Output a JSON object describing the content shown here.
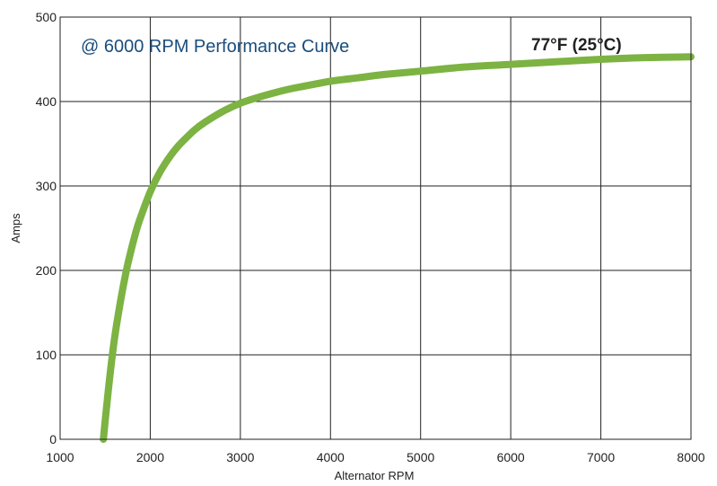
{
  "chart_data": {
    "type": "line",
    "title": "@ 6000 RPM Performance Curve",
    "annotation": "77°F (25°C)",
    "xlabel": "Alternator RPM",
    "ylabel": "Amps",
    "xlim": [
      1000,
      8000
    ],
    "ylim": [
      0,
      500
    ],
    "x_ticks": [
      1000,
      2000,
      3000,
      4000,
      5000,
      6000,
      7000,
      8000
    ],
    "y_ticks": [
      0,
      100,
      200,
      300,
      400,
      500
    ],
    "grid": true,
    "colors": {
      "line": "#7cb342",
      "title": "#1a4d7c",
      "annotation": "#222222",
      "grid": "#222222"
    },
    "series": [
      {
        "x": [
          1480,
          1500,
          1530,
          1560,
          1600,
          1650,
          1700,
          1750,
          1800,
          1850,
          1900,
          2000,
          2100,
          2200,
          2300,
          2400,
          2500,
          2600,
          2800,
          3000,
          3200,
          3400,
          3600,
          3800,
          4000,
          4300,
          4600,
          5000,
          5500,
          6000,
          6500,
          7000,
          7500,
          8000
        ],
        "y": [
          0,
          22,
          53,
          82,
          117,
          151,
          181,
          207,
          229,
          249,
          265,
          293,
          315,
          332,
          346,
          357,
          367,
          375,
          388,
          398,
          405,
          411,
          416,
          420,
          424,
          428,
          432,
          436,
          441,
          444,
          447,
          450,
          452,
          453
        ]
      }
    ]
  }
}
